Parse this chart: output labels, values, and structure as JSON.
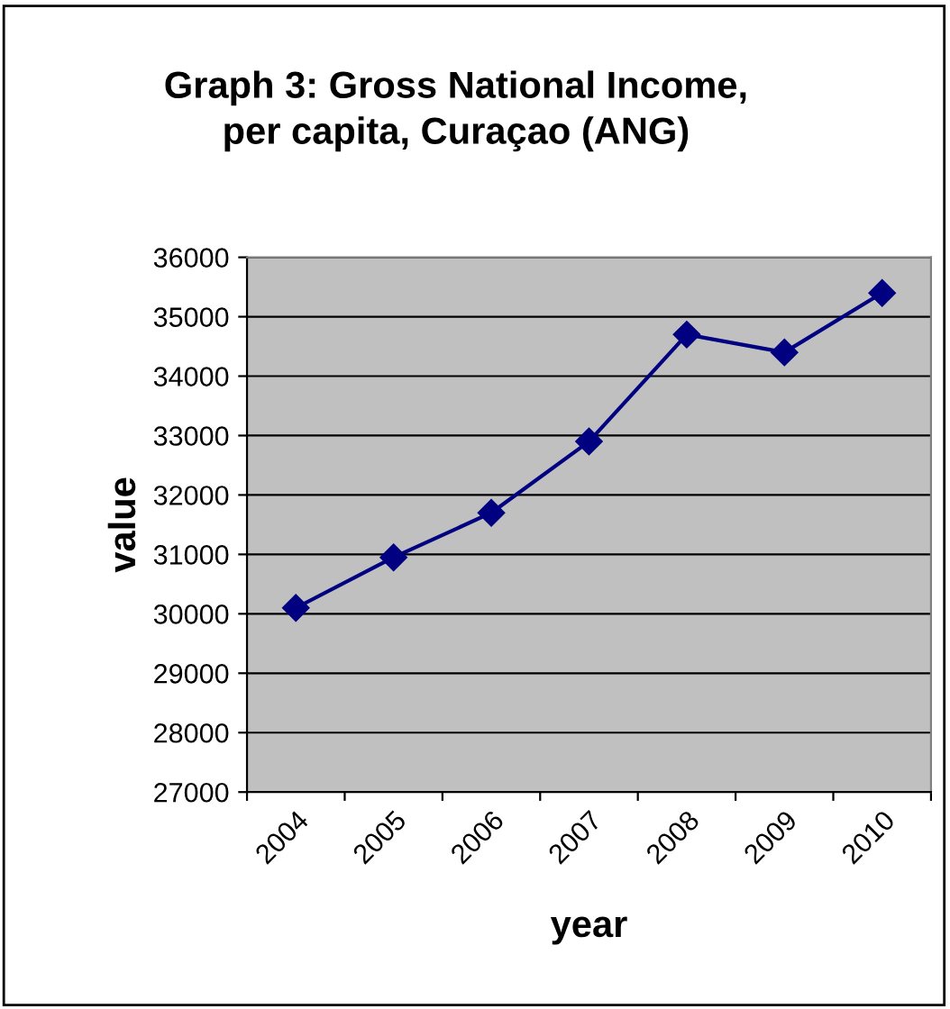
{
  "chart_data": {
    "type": "line",
    "title": "Graph 3: Gross National Income,\nper capita, Curaçao (ANG)",
    "xlabel": "year",
    "ylabel": "value",
    "categories": [
      "2004",
      "2005",
      "2006",
      "2007",
      "2008",
      "2009",
      "2010"
    ],
    "series": [
      {
        "color": "#000080",
        "values": [
          30100,
          30950,
          31700,
          32900,
          34700,
          34400,
          35400
        ]
      }
    ],
    "ylim": [
      27000,
      36000
    ],
    "yticks": [
      27000,
      28000,
      29000,
      30000,
      31000,
      32000,
      33000,
      34000,
      35000,
      36000
    ],
    "grid": "y",
    "marker": "diamond",
    "line_style": "solid",
    "legend": false
  }
}
